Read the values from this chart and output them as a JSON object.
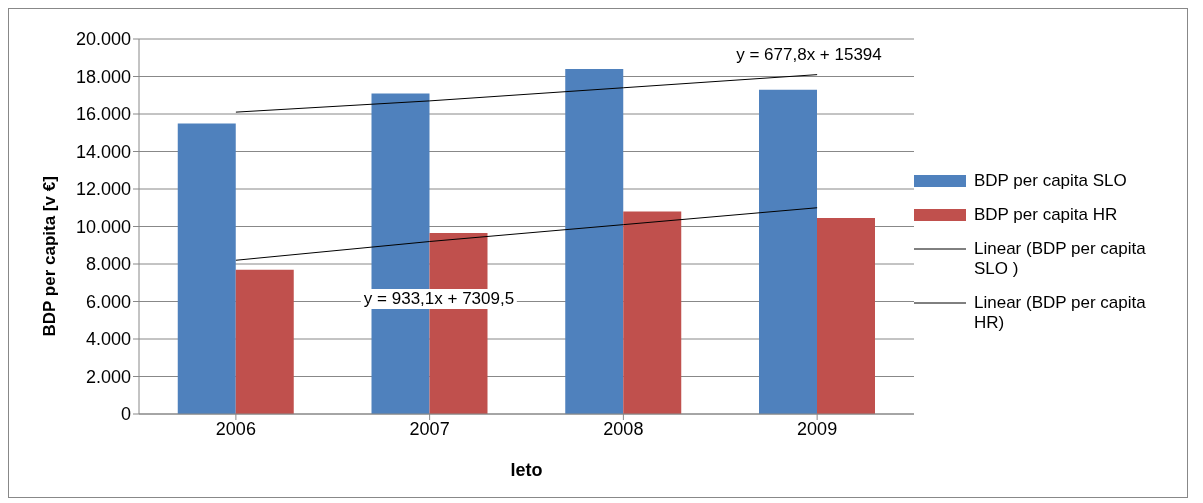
{
  "chart_data": {
    "type": "bar",
    "xlabel": "leto",
    "ylabel": "BDP per capita [v €]",
    "categories": [
      "2006",
      "2007",
      "2008",
      "2009"
    ],
    "series": [
      {
        "name": "BDP per capita SLO",
        "color": "#4f81bd",
        "values": [
          15500,
          17100,
          18400,
          17300
        ]
      },
      {
        "name": "BDP per capita HR",
        "color": "#c0504d",
        "values": [
          7700,
          9650,
          10800,
          10450
        ]
      },
      {
        "name": "Linear (BDP per capita SLO )",
        "type": "line",
        "color": "#000000",
        "values": [
          16100,
          16700,
          17400,
          18100
        ]
      },
      {
        "name": "Linear (BDP per capita HR)",
        "type": "line",
        "color": "#000000",
        "values": [
          8200,
          9200,
          10100,
          11000
        ]
      }
    ],
    "ylim": [
      0,
      20000
    ],
    "yticks": [
      0,
      {
        "value": 2000,
        "label": "2.000"
      },
      {
        "value": 4000,
        "label": "4.000"
      },
      {
        "value": 6000,
        "label": "6.000"
      },
      {
        "value": 8000,
        "label": "8.000"
      },
      {
        "value": 10000,
        "label": "10.000"
      },
      {
        "value": 12000,
        "label": "12.000"
      },
      {
        "value": 14000,
        "label": "14.000"
      },
      {
        "value": 16000,
        "label": "16.000"
      },
      {
        "value": 18000,
        "label": "18.000"
      },
      {
        "value": 20000,
        "label": "20.000"
      }
    ],
    "annotations": [
      "y = 677,8x + 15394",
      "y = 933,1x + 7309,5"
    ],
    "grid": "y",
    "legend": "right",
    "marker": "none"
  }
}
